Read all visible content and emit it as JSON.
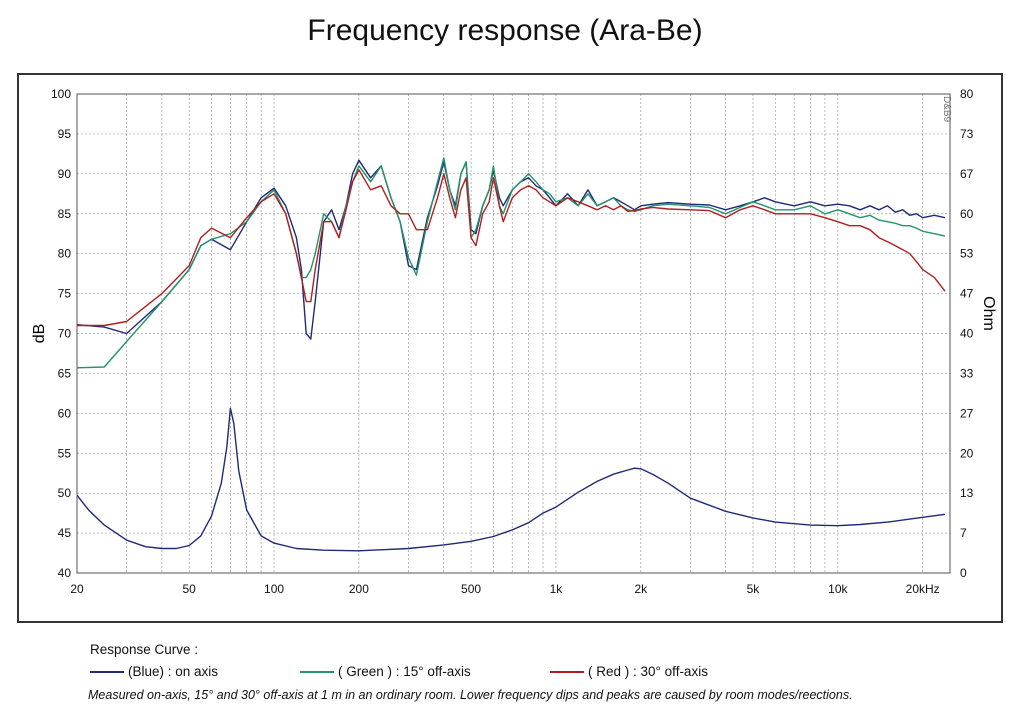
{
  "title": "Frequency response  (Ara-Be)",
  "chart_data": {
    "type": "line",
    "xscale": "log",
    "xlim": [
      20,
      25000
    ],
    "x_ticks": [
      20,
      50,
      100,
      200,
      500,
      1000,
      2000,
      5000,
      10000,
      20000
    ],
    "x_tick_labels": [
      "20",
      "50",
      "100",
      "200",
      "500",
      "1k",
      "2k",
      "5k",
      "10k",
      "20kHz"
    ],
    "ylim_left": [
      40,
      100
    ],
    "y_ticks_left": [
      "40",
      "45",
      "50",
      "55",
      "60",
      "65",
      "70",
      "75",
      "80",
      "85",
      "90",
      "95",
      "100"
    ],
    "ylabel_left": "dB",
    "ylim_right": [
      0,
      80
    ],
    "y_ticks_right": [
      "0",
      "7",
      "13",
      "20",
      "27",
      "33",
      "40",
      "47",
      "53",
      "60",
      "67",
      "73",
      "80"
    ],
    "ylabel_right": "Ohm",
    "grid": true,
    "series": [
      {
        "name": "(Blue)  : on axis",
        "color": "#1f2a78",
        "axis": "left",
        "x": [
          20,
          25,
          30,
          40,
          50,
          55,
          60,
          70,
          80,
          90,
          100,
          110,
          120,
          125,
          130,
          135,
          140,
          150,
          160,
          170,
          180,
          190,
          200,
          220,
          240,
          260,
          280,
          300,
          320,
          350,
          380,
          400,
          420,
          440,
          460,
          480,
          500,
          520,
          550,
          580,
          600,
          630,
          650,
          700,
          750,
          800,
          850,
          900,
          950,
          1000,
          1100,
          1200,
          1300,
          1400,
          1500,
          1600,
          1700,
          1800,
          1900,
          2000,
          2200,
          2500,
          3000,
          3500,
          4000,
          4500,
          5000,
          5500,
          6000,
          7000,
          8000,
          9000,
          10000,
          11000,
          12000,
          13000,
          14000,
          15000,
          16000,
          17000,
          18000,
          19000,
          20000,
          22000,
          24000
        ],
        "y": [
          71.1,
          70.8,
          70,
          74,
          78,
          81,
          81.8,
          80.5,
          84,
          87,
          88.2,
          86,
          82,
          78,
          70,
          69.3,
          74,
          84,
          85.5,
          83,
          86,
          90,
          91.7,
          89.5,
          91,
          87,
          84,
          78.5,
          78,
          84.5,
          88.5,
          91.5,
          88,
          86,
          90,
          91.5,
          83,
          82.5,
          86,
          88,
          90.5,
          87,
          86,
          88,
          89,
          89.5,
          88.5,
          88,
          87,
          86,
          87.5,
          86,
          88,
          86,
          86.5,
          87,
          86.5,
          86,
          85.5,
          86,
          86.2,
          86.4,
          86.2,
          86.1,
          85.5,
          86,
          86.5,
          87,
          86.5,
          86,
          86.5,
          86,
          86.2,
          86,
          85.5,
          86,
          85.5,
          86,
          85.2,
          85.5,
          84.8,
          85,
          84.5,
          84.8,
          84.5
        ]
      },
      {
        "name": "( Green ) : 15° off-axis",
        "color": "#23956a",
        "axis": "left",
        "x": [
          20,
          25,
          30,
          40,
          50,
          55,
          60,
          70,
          80,
          90,
          100,
          110,
          120,
          125,
          130,
          135,
          140,
          150,
          160,
          170,
          180,
          190,
          200,
          220,
          240,
          260,
          280,
          300,
          320,
          350,
          380,
          400,
          420,
          440,
          460,
          480,
          500,
          520,
          550,
          580,
          600,
          630,
          650,
          700,
          750,
          800,
          850,
          900,
          950,
          1000,
          1100,
          1200,
          1300,
          1400,
          1500,
          1600,
          1700,
          1800,
          1900,
          2000,
          2200,
          2500,
          3000,
          3500,
          4000,
          4500,
          5000,
          5500,
          6000,
          7000,
          8000,
          9000,
          10000,
          11000,
          12000,
          13000,
          14000,
          15000,
          16000,
          17000,
          18000,
          19000,
          20000,
          22000,
          24000
        ],
        "y": [
          65.7,
          65.8,
          69,
          74,
          78,
          81,
          81.8,
          82.5,
          84,
          86.5,
          88,
          85,
          80,
          77,
          77,
          78,
          80,
          85,
          84,
          82,
          86,
          89,
          91,
          89,
          91,
          87,
          84,
          79.5,
          77.3,
          84,
          89,
          92,
          88,
          85.5,
          90,
          91.5,
          82,
          83,
          86,
          88,
          91,
          86,
          85,
          88,
          89,
          90,
          89,
          88,
          87.5,
          86.5,
          87,
          86,
          87.5,
          86,
          86.5,
          87,
          86,
          85.5,
          85.3,
          85.5,
          86,
          86.2,
          86,
          85.8,
          85,
          85.8,
          86.5,
          86,
          85.5,
          85.5,
          86,
          85,
          85.5,
          85,
          84.5,
          84.8,
          84.2,
          84,
          83.8,
          83.5,
          83.5,
          83.2,
          82.8,
          82.5,
          82.2
        ]
      },
      {
        "name": "( Red ) : 30° off-axis",
        "color": "#b01f1f",
        "axis": "left",
        "x": [
          20,
          25,
          30,
          40,
          50,
          55,
          60,
          70,
          80,
          90,
          100,
          110,
          120,
          125,
          130,
          135,
          140,
          150,
          160,
          170,
          180,
          190,
          200,
          220,
          240,
          260,
          280,
          300,
          320,
          350,
          380,
          400,
          420,
          440,
          460,
          480,
          500,
          520,
          550,
          580,
          600,
          630,
          650,
          700,
          750,
          800,
          850,
          900,
          950,
          1000,
          1100,
          1200,
          1300,
          1400,
          1500,
          1600,
          1700,
          1800,
          1900,
          2000,
          2200,
          2500,
          3000,
          3500,
          4000,
          4500,
          5000,
          5500,
          6000,
          7000,
          8000,
          9000,
          10000,
          11000,
          12000,
          13000,
          14000,
          15000,
          16000,
          17000,
          18000,
          19000,
          20000,
          22000,
          24000
        ],
        "y": [
          71,
          71,
          71.5,
          75,
          78.5,
          82,
          83.2,
          82,
          84.5,
          86.5,
          87.5,
          85,
          80,
          77,
          74,
          74,
          78,
          84,
          84,
          82,
          85.5,
          89,
          90.5,
          88,
          88.5,
          86,
          85,
          85,
          83,
          83,
          87,
          90,
          87,
          84.5,
          88,
          89.5,
          82,
          81,
          85,
          86.5,
          89.5,
          86,
          84,
          87,
          88,
          88.5,
          88,
          87,
          86.5,
          86,
          87,
          86.5,
          86,
          85.5,
          86,
          85.5,
          86,
          85.3,
          85.4,
          85.6,
          85.8,
          85.6,
          85.5,
          85.4,
          84.5,
          85.5,
          86,
          85.5,
          85,
          85,
          85,
          84.5,
          84,
          83.5,
          83.5,
          83,
          82,
          81.5,
          81,
          80.5,
          80,
          79,
          78,
          77,
          75.3
        ]
      },
      {
        "name": "Impedance",
        "color": "#1f2a78",
        "axis": "right",
        "x": [
          20,
          22,
          25,
          30,
          35,
          40,
          45,
          50,
          55,
          60,
          65,
          68,
          70,
          72,
          75,
          80,
          90,
          100,
          120,
          150,
          200,
          300,
          400,
          500,
          600,
          700,
          800,
          900,
          1000,
          1200,
          1400,
          1600,
          1800,
          1900,
          2000,
          2200,
          2500,
          3000,
          4000,
          5000,
          6000,
          8000,
          10000,
          12000,
          15000,
          18000,
          20000,
          24000
        ],
        "y": [
          13,
          10.5,
          8,
          5.5,
          4.4,
          4.1,
          4.1,
          4.6,
          6.2,
          9.5,
          15,
          21,
          27.5,
          25,
          17,
          10.5,
          6.2,
          5,
          4.1,
          3.8,
          3.7,
          4.1,
          4.7,
          5.3,
          6.1,
          7.2,
          8.4,
          10,
          11,
          13.5,
          15.3,
          16.5,
          17.2,
          17.5,
          17.4,
          16.5,
          15,
          12.5,
          10.3,
          9.2,
          8.5,
          8,
          7.9,
          8.1,
          8.5,
          9,
          9.3,
          9.8
        ]
      }
    ]
  },
  "legend": {
    "heading": "Response Curve :",
    "items": [
      {
        "label": "(Blue)  : on axis",
        "color": "#1f2a78"
      },
      {
        "label": "( Green ) : 15° off-axis",
        "color": "#23956a"
      },
      {
        "label": "( Red ) : 30° off-axis",
        "color": "#b01f1f"
      }
    ]
  },
  "watermark_text": "D&B9",
  "footnote": "Measured on-axis, 15° and 30° off-axis at 1 m in an ordinary room. Lower frequency dips and peaks are caused by room modes/re\u001fections."
}
